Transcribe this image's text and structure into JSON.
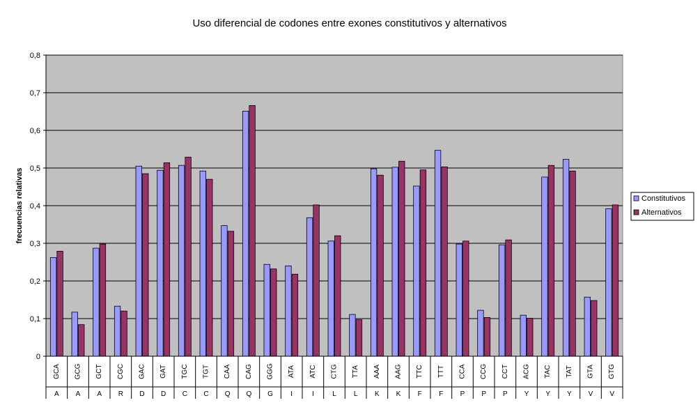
{
  "chart_data": {
    "type": "bar",
    "title": "Uso diferencial de codones entre exones constitutivos y alternativos",
    "xlabel": "",
    "ylabel": "frecuencias relativas",
    "ylim": [
      0,
      0.8
    ],
    "yticks": [
      "0",
      "0,1",
      "0,2",
      "0,3",
      "0,4",
      "0,5",
      "0,6",
      "0,7",
      "0,8"
    ],
    "grid": true,
    "legend_position": "right",
    "colors": {
      "plot_background": "#c0c0c0",
      "Constitutivos": "#9999ff",
      "Alternativos": "#993366"
    },
    "categories": [
      "GCA",
      "GCG",
      "GCT",
      "CGC",
      "GAC",
      "GAT",
      "TGC",
      "TGT",
      "CAA",
      "CAG",
      "GGG",
      "ATA",
      "ATC",
      "CTG",
      "TTA",
      "AAA",
      "AAG",
      "TTC",
      "TTT",
      "CCA",
      "CCG",
      "CCT",
      "ACG",
      "TAC",
      "TAT",
      "GTA",
      "GTG"
    ],
    "amino_acids": [
      "A",
      "A",
      "A",
      "R",
      "D",
      "D",
      "C",
      "C",
      "Q",
      "Q",
      "G",
      "I",
      "I",
      "L",
      "L",
      "K",
      "K",
      "F",
      "F",
      "P",
      "P",
      "P",
      "Y",
      "Y",
      "Y",
      "V",
      "V"
    ],
    "series": [
      {
        "name": "Constitutivos",
        "values": [
          0.262,
          0.117,
          0.287,
          0.133,
          0.505,
          0.494,
          0.507,
          0.492,
          0.347,
          0.651,
          0.244,
          0.24,
          0.368,
          0.306,
          0.111,
          0.498,
          0.502,
          0.452,
          0.547,
          0.298,
          0.122,
          0.296,
          0.109,
          0.476,
          0.523,
          0.157,
          0.392
        ]
      },
      {
        "name": "Alternativos",
        "values": [
          0.279,
          0.084,
          0.298,
          0.12,
          0.485,
          0.514,
          0.529,
          0.47,
          0.332,
          0.666,
          0.232,
          0.218,
          0.402,
          0.32,
          0.097,
          0.481,
          0.518,
          0.495,
          0.503,
          0.306,
          0.103,
          0.309,
          0.101,
          0.507,
          0.492,
          0.148,
          0.402
        ]
      }
    ]
  }
}
